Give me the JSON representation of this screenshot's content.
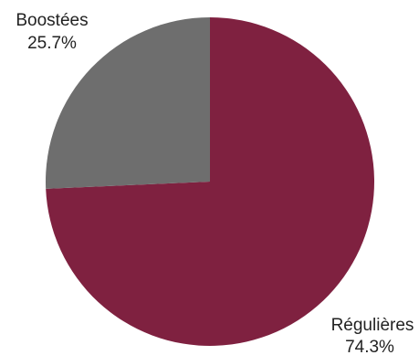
{
  "chart_data": {
    "type": "pie",
    "title": "",
    "slices": [
      {
        "label": "Régulières",
        "value": 74.3,
        "value_label": "74.3%",
        "color": "#7f2140"
      },
      {
        "label": "Boostées",
        "value": 25.7,
        "value_label": "25.7%",
        "color": "#6e6e6e"
      }
    ],
    "start_angle_deg": 0,
    "direction": "clockwise",
    "legend": "none"
  }
}
